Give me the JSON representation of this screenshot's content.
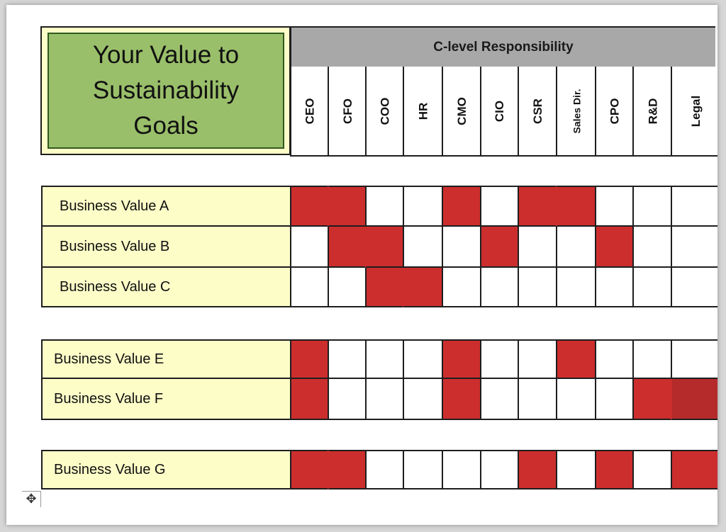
{
  "title": "Your Value to\nSustainability\nGoals",
  "header": "C-level Responsibility",
  "columns": [
    "CEO",
    "CFO",
    "COO",
    "HR",
    "CMO",
    "CIO",
    "CSR",
    "Sales Dir.",
    "CPO",
    "R&D",
    "Legal"
  ],
  "groups": [
    {
      "rows": [
        {
          "label": "Business Value A",
          "cells": [
            1,
            1,
            0,
            0,
            1,
            0,
            1,
            1,
            0,
            0,
            0
          ]
        },
        {
          "label": "Business Value B",
          "cells": [
            0,
            1,
            1,
            0,
            0,
            1,
            0,
            0,
            1,
            0,
            0
          ]
        },
        {
          "label": "Business Value C",
          "cells": [
            0,
            0,
            1,
            1,
            0,
            0,
            0,
            0,
            0,
            0,
            0
          ]
        }
      ]
    },
    {
      "rows": [
        {
          "label": "Business Value E",
          "cells": [
            1,
            0,
            0,
            0,
            1,
            0,
            0,
            1,
            0,
            0,
            0
          ]
        },
        {
          "label": "Business Value F",
          "cells": [
            1,
            0,
            0,
            0,
            1,
            0,
            0,
            0,
            0,
            1,
            1
          ]
        }
      ]
    },
    {
      "rows": [
        {
          "label": "Business Value G",
          "cells": [
            1,
            1,
            0,
            0,
            0,
            0,
            1,
            0,
            1,
            0,
            1
          ]
        }
      ]
    }
  ],
  "colors": {
    "marked": "#cc2e2e",
    "label_bg": "#fdfdc8",
    "title_bg": "#9abf6a",
    "header_bg": "#a8a8a8"
  },
  "move_handle_icon": "move-table-icon"
}
